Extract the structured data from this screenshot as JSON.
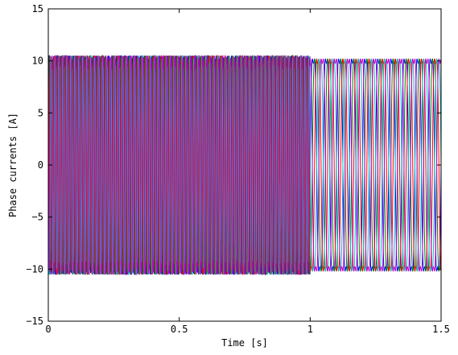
{
  "chart_data": {
    "type": "line",
    "title": "",
    "xlabel": "Time [s]",
    "ylabel": "Phase currents [A]",
    "xlim": [
      0,
      1.5
    ],
    "ylim": [
      -15,
      15
    ],
    "x_ticks": [
      0,
      0.5,
      1,
      1.5
    ],
    "x_tick_labels": [
      "0",
      "0.5",
      "1",
      "1.5"
    ],
    "y_ticks": [
      -15,
      -10,
      -5,
      0,
      5,
      10,
      15
    ],
    "y_tick_labels": [
      "−15",
      "−10",
      "−5",
      "0",
      "5",
      "10",
      "15"
    ],
    "grid": false,
    "legend": "none",
    "amplitude": 10.5,
    "frequency_before_1s_hz": 66,
    "frequency_after_1s_hz": 20,
    "series": [
      {
        "color": "#0000ff",
        "phase_deg": 0
      },
      {
        "color": "#008000",
        "phase_deg": -60
      },
      {
        "color": "#ff0000",
        "phase_deg": -120
      },
      {
        "color": "#00bfbf",
        "phase_deg": -180
      },
      {
        "color": "#bf00bf",
        "phase_deg": -240
      }
    ]
  }
}
